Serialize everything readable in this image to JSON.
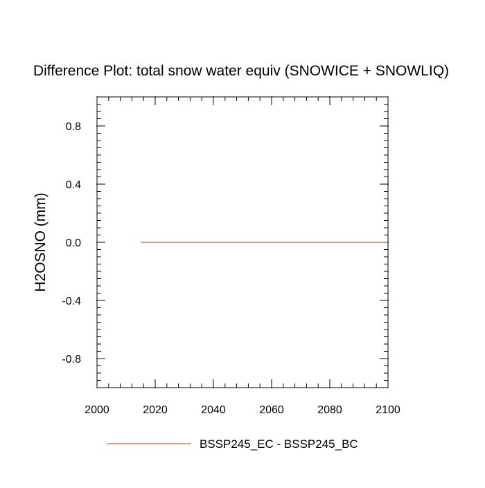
{
  "chart_data": {
    "type": "line",
    "title": "Difference Plot: total snow water equiv (SNOWICE + SNOWLIQ)",
    "xlabel": "",
    "ylabel": "H2OSNO  (mm)",
    "xlim": [
      2000,
      2100
    ],
    "ylim": [
      -1,
      1
    ],
    "x_ticks": [
      2000,
      2020,
      2040,
      2060,
      2080,
      2100
    ],
    "x_tick_labels": [
      "2000",
      "2020",
      "2040",
      "2060",
      "2080",
      "2100"
    ],
    "y_ticks": [
      0.8,
      0.4,
      0.0,
      -0.4,
      -0.8
    ],
    "y_tick_labels": [
      "0.8",
      "0.4",
      "0.0",
      "-0.4",
      "-0.8"
    ],
    "grid": false,
    "legend_position": "bottom-center",
    "series": [
      {
        "name": "BSSP245_EC - BSSP245_BC",
        "color": "#e8584f",
        "x": [
          2015,
          2100
        ],
        "values": [
          0.0,
          0.0
        ]
      }
    ]
  }
}
